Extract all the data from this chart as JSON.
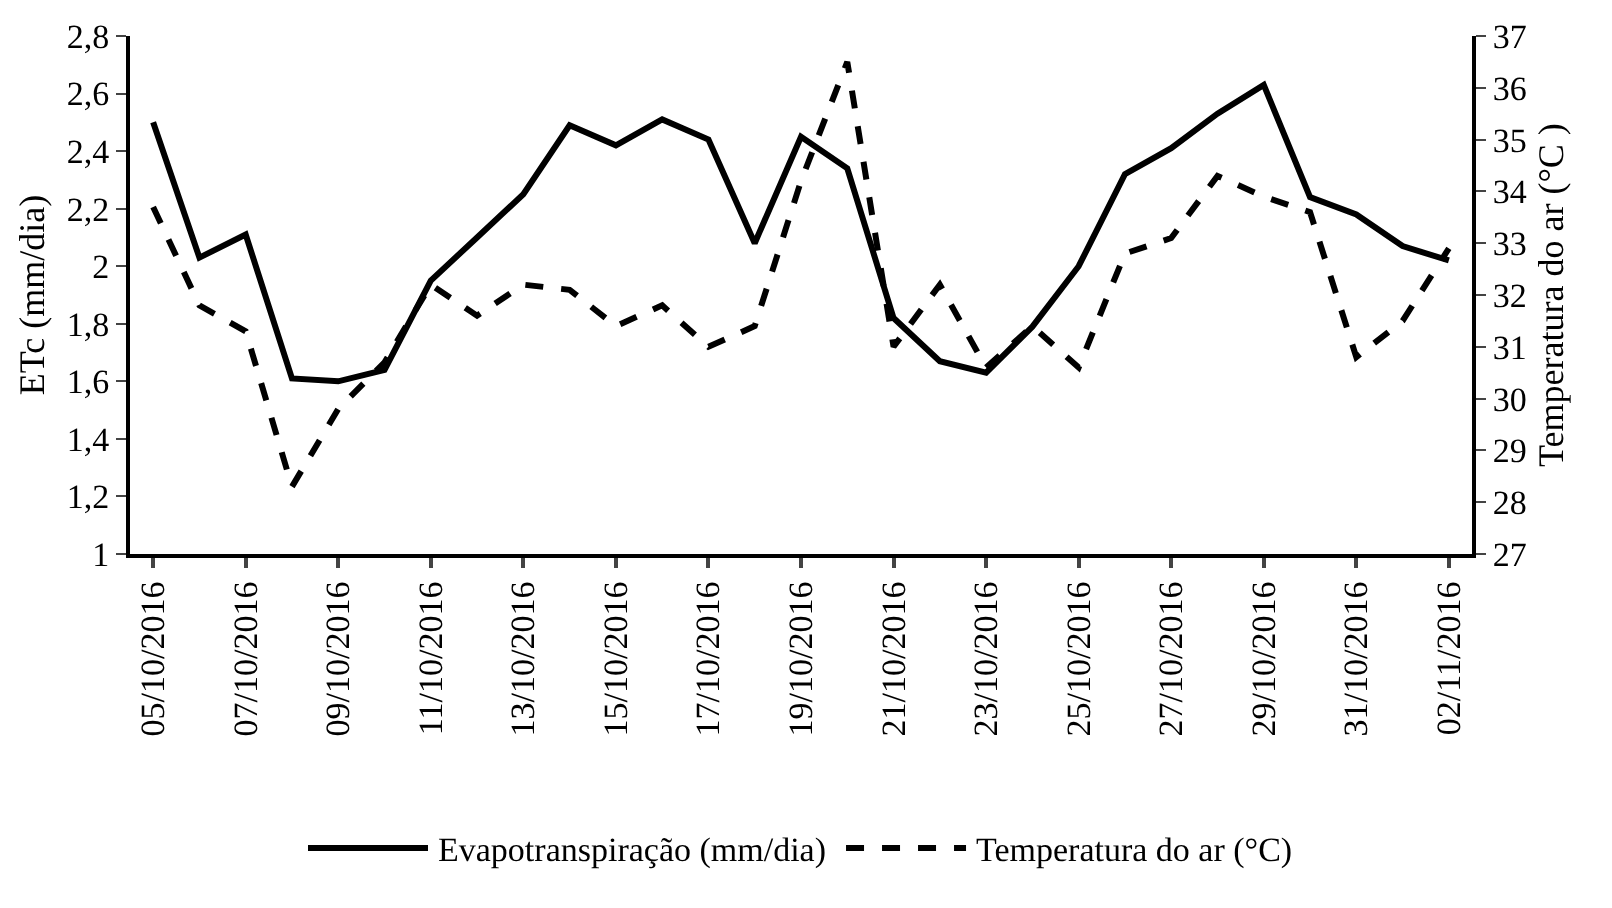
{
  "chart_data": {
    "type": "line",
    "categories": [
      "05/10/2016",
      null,
      "07/10/2016",
      null,
      "09/10/2016",
      null,
      "11/10/2016",
      null,
      "13/10/2016",
      null,
      "15/10/2016",
      null,
      "17/10/2016",
      null,
      "19/10/2016",
      null,
      "21/10/2016",
      null,
      "23/10/2016",
      null,
      "25/10/2016",
      null,
      "27/10/2016",
      null,
      "29/10/2016",
      null,
      "31/10/2016",
      null,
      "02/11/2016"
    ],
    "series": [
      {
        "name": "Evapotranspiração (mm/dia)",
        "color": "#000000",
        "line_style": "solid",
        "values": [
          2.5,
          2.03,
          2.11,
          1.61,
          1.6,
          1.64,
          1.95,
          2.1,
          2.25,
          2.49,
          2.42,
          2.51,
          2.44,
          2.08,
          2.45,
          2.34,
          1.82,
          1.67,
          1.63,
          1.79,
          2.0,
          2.32,
          2.41,
          2.53,
          2.63,
          2.24,
          2.18,
          2.07,
          2.02
        ]
      },
      {
        "name": "Temperatura do ar (°C)",
        "color": "#000000",
        "line_style": "dashed",
        "axis": "y2",
        "values": [
          33.7,
          31.8,
          31.3,
          28.3,
          29.8,
          30.7,
          32.2,
          31.6,
          32.2,
          32.1,
          31.4,
          31.8,
          31.0,
          31.4,
          34.2,
          36.5,
          31.0,
          32.2,
          30.6,
          31.4,
          30.6,
          32.8,
          33.1,
          34.3,
          33.9,
          33.6,
          30.8,
          31.5,
          32.9
        ]
      }
    ],
    "ylabel": "ETc (mm/dia)",
    "y2label": "Temperatura do ar (°C )",
    "ylim": [
      1,
      2.8
    ],
    "yticks": [
      {
        "value": 1,
        "label": "1"
      },
      {
        "value": 1.2,
        "label": "1,2"
      },
      {
        "value": 1.4,
        "label": "1,4"
      },
      {
        "value": 1.6,
        "label": "1,6"
      },
      {
        "value": 1.8,
        "label": "1,8"
      },
      {
        "value": 2,
        "label": "2"
      },
      {
        "value": 2.2,
        "label": "2,2"
      },
      {
        "value": 2.4,
        "label": "2,4"
      },
      {
        "value": 2.6,
        "label": "2,6"
      },
      {
        "value": 2.8,
        "label": "2,8"
      }
    ],
    "y2lim": [
      27,
      37
    ],
    "y2ticks": [
      27,
      28,
      29,
      30,
      31,
      32,
      33,
      34,
      35,
      36,
      37
    ],
    "grid": false,
    "legend": "bottom",
    "marker": "none"
  }
}
